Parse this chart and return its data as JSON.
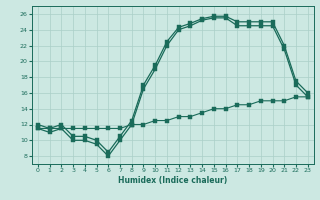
{
  "xlabel": "Humidex (Indice chaleur)",
  "bg_color": "#cce8e2",
  "grid_color": "#aacfc8",
  "line_color": "#1a6b5a",
  "xlim": [
    -0.5,
    23.5
  ],
  "ylim": [
    7,
    27
  ],
  "yticks": [
    8,
    10,
    12,
    14,
    16,
    18,
    20,
    22,
    24,
    26
  ],
  "xticks": [
    0,
    1,
    2,
    3,
    4,
    5,
    6,
    7,
    8,
    9,
    10,
    11,
    12,
    13,
    14,
    15,
    16,
    17,
    18,
    19,
    20,
    21,
    22,
    23
  ],
  "line1_x": [
    0,
    1,
    2,
    3,
    4,
    5,
    6,
    7,
    8,
    9,
    10,
    11,
    12,
    13,
    14,
    15,
    16,
    17,
    18,
    19,
    20,
    21,
    22,
    23
  ],
  "line1_y": [
    11.5,
    11.0,
    11.5,
    10.0,
    10.0,
    9.5,
    8.0,
    10.0,
    12.0,
    16.5,
    19.0,
    22.0,
    24.0,
    24.5,
    25.2,
    25.5,
    25.5,
    24.5,
    24.5,
    24.5,
    24.5,
    21.5,
    17.0,
    15.5
  ],
  "line2_x": [
    0,
    1,
    2,
    3,
    4,
    5,
    6,
    7,
    8,
    9,
    10,
    11,
    12,
    13,
    14,
    15,
    16,
    17,
    18,
    19,
    20,
    21,
    22,
    23
  ],
  "line2_y": [
    12.0,
    11.5,
    12.0,
    10.5,
    10.5,
    10.0,
    8.5,
    10.5,
    12.5,
    17.0,
    19.5,
    22.5,
    24.3,
    24.8,
    25.4,
    25.7,
    25.7,
    25.0,
    25.0,
    25.0,
    25.0,
    22.0,
    17.5,
    16.0
  ],
  "line3_x": [
    0,
    1,
    2,
    3,
    4,
    5,
    6,
    7,
    8,
    9,
    10,
    11,
    12,
    13,
    14,
    15,
    16,
    17,
    18,
    19,
    20,
    21,
    22,
    23
  ],
  "line3_y": [
    11.5,
    11.5,
    11.5,
    11.5,
    11.5,
    11.5,
    11.5,
    11.5,
    12.0,
    12.0,
    12.5,
    12.5,
    13.0,
    13.0,
    13.5,
    14.0,
    14.0,
    14.5,
    14.5,
    15.0,
    15.0,
    15.0,
    15.5,
    15.5
  ]
}
